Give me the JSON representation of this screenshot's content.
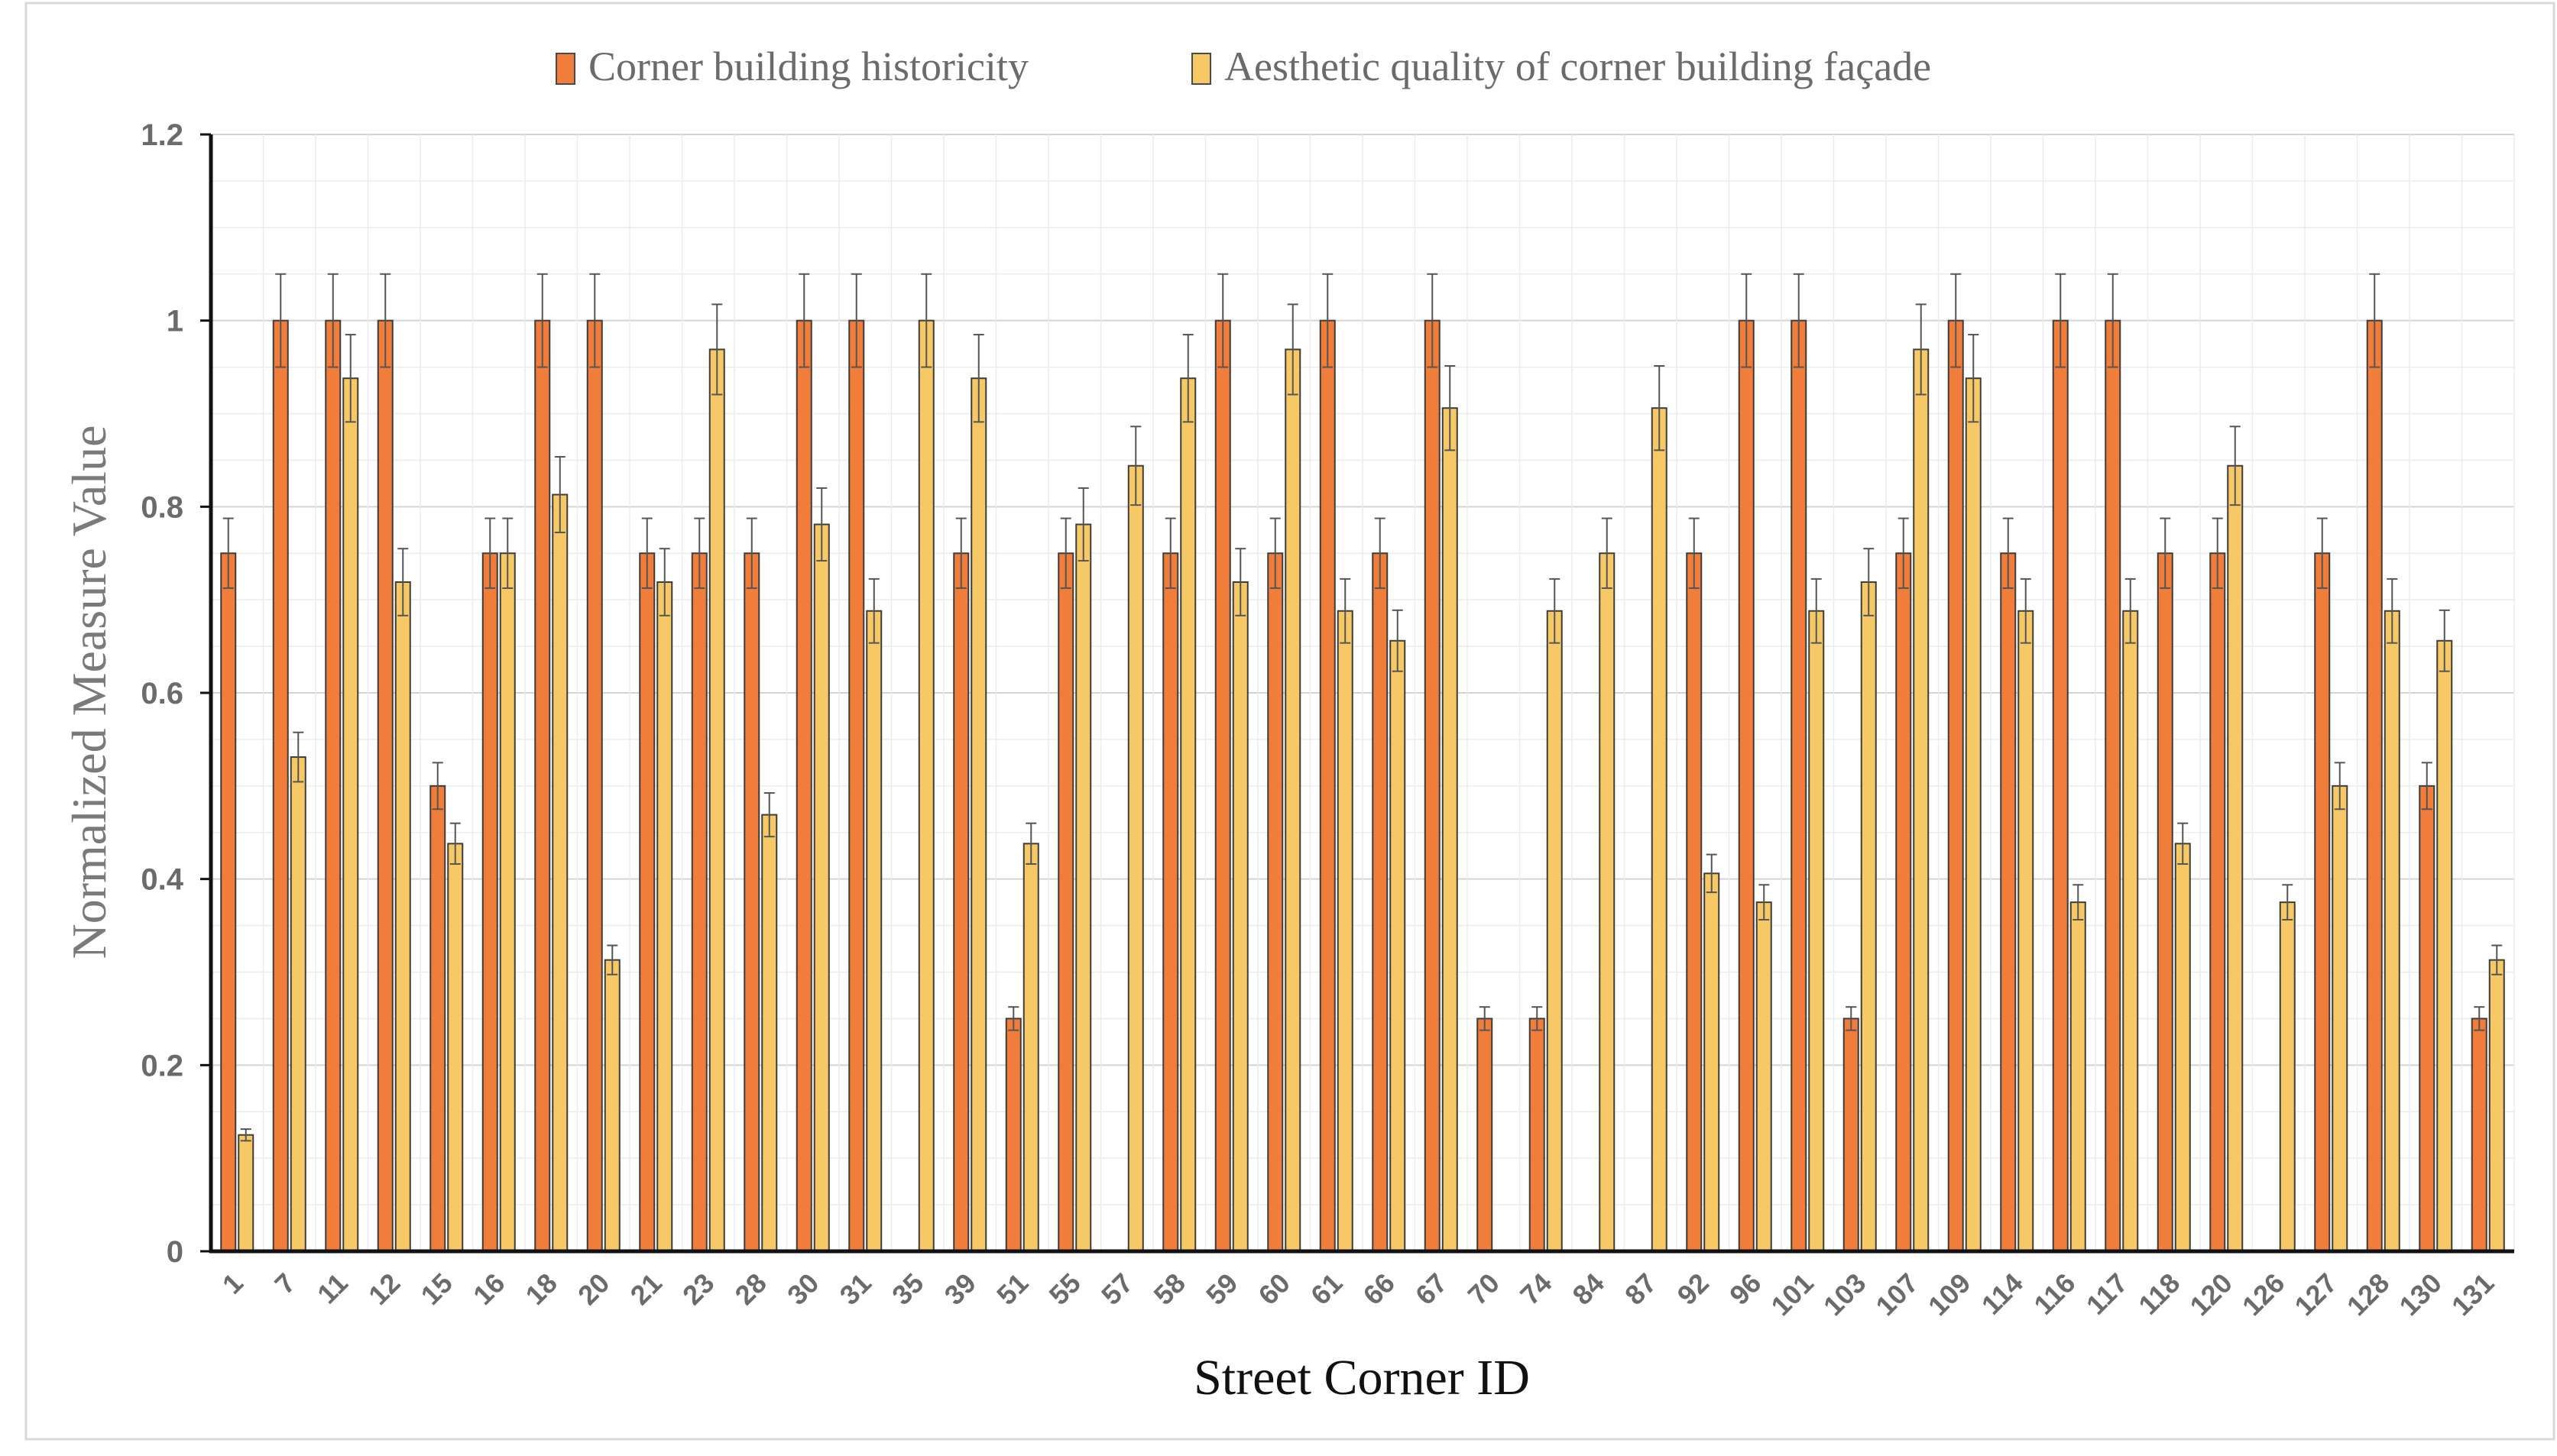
{
  "chart_data": {
    "type": "bar",
    "title": "",
    "xlabel": "Street Corner ID",
    "ylabel": "Normalized Measure Value",
    "ylim": [
      0,
      1.2
    ],
    "yticks": [
      "0",
      "0.2",
      "0.4",
      "0.6",
      "0.8",
      "1",
      "1.2"
    ],
    "grid": true,
    "legend_position": "top-center",
    "error_bars": "5% of value",
    "categories": [
      "1",
      "7",
      "11",
      "12",
      "15",
      "16",
      "18",
      "20",
      "21",
      "23",
      "28",
      "30",
      "31",
      "35",
      "39",
      "51",
      "55",
      "57",
      "58",
      "59",
      "60",
      "61",
      "66",
      "67",
      "70",
      "74",
      "84",
      "87",
      "92",
      "96",
      "101",
      "103",
      "107",
      "109",
      "114",
      "116",
      "117",
      "118",
      "120",
      "126",
      "127",
      "128",
      "130",
      "131"
    ],
    "series": [
      {
        "name": "Corner building historicity",
        "color": "#f07d3a",
        "values": [
          0.75,
          1,
          1,
          1,
          0.5,
          0.75,
          1,
          1,
          0.75,
          0.75,
          0.75,
          1,
          1,
          0,
          0.75,
          0.25,
          0.75,
          0,
          0.75,
          1,
          0.75,
          1,
          0.75,
          1,
          0.25,
          0.25,
          0,
          0,
          0.75,
          1,
          1,
          0.25,
          0.75,
          1,
          0.75,
          1,
          1,
          0.75,
          0.75,
          0,
          0.75,
          1,
          0.5,
          0.25
        ]
      },
      {
        "name": "Aesthetic quality of corner building façade",
        "color": "#f7c966",
        "values": [
          0.125,
          0.531,
          0.938,
          0.719,
          0.438,
          0.75,
          0.813,
          0.313,
          0.719,
          0.969,
          0.469,
          0.781,
          0.688,
          1,
          0.938,
          0.438,
          0.781,
          0.844,
          0.938,
          0.719,
          0.969,
          0.688,
          0.656,
          0.906,
          0,
          0.688,
          0.75,
          0.906,
          0.406,
          0.375,
          0.688,
          0.719,
          0.969,
          0.938,
          0.688,
          0.375,
          0.688,
          0.438,
          0.844,
          0.375,
          0.5,
          0.688,
          0.656,
          0.313
        ]
      }
    ]
  }
}
